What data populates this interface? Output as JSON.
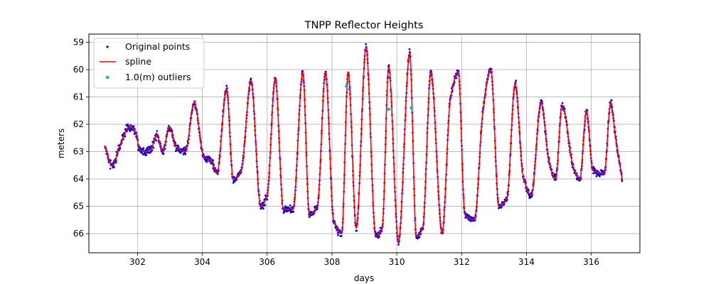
{
  "chart_data": {
    "type": "scatter",
    "title": "TNPP Reflector Heights",
    "xlabel": "days",
    "ylabel": "meters",
    "xlim": [
      300.5,
      317.5
    ],
    "ylim": [
      66.7,
      58.7
    ],
    "y_inverted": true,
    "xticks": [
      302,
      304,
      306,
      308,
      310,
      312,
      314,
      316
    ],
    "yticks": [
      59,
      60,
      61,
      62,
      63,
      64,
      65,
      66
    ],
    "grid": true,
    "legend_position": "top-left",
    "colors": {
      "original_points": "#0000ff",
      "spline": "#ff0000",
      "outliers": "#00bfbf"
    },
    "series": [
      {
        "name": "Original points",
        "kind": "scatter",
        "color": "#0000ff",
        "note": "dense sampling following the spline (~1900 points)"
      },
      {
        "name": "spline",
        "kind": "line",
        "color": "#ff0000",
        "x": [
          301.0,
          301.2,
          301.28,
          301.45,
          301.75,
          301.95,
          302.05,
          302.25,
          302.42,
          302.6,
          302.78,
          302.98,
          303.22,
          303.48,
          303.75,
          304.05,
          304.25,
          304.45,
          304.75,
          304.95,
          305.2,
          305.5,
          305.8,
          306.0,
          306.25,
          306.5,
          306.8,
          307.1,
          307.3,
          307.55,
          307.8,
          308.05,
          308.3,
          308.5,
          308.75,
          309.05,
          309.35,
          309.55,
          309.75,
          310.05,
          310.4,
          310.6,
          310.8,
          311.05,
          311.4,
          311.65,
          311.9,
          312.1,
          312.4,
          312.65,
          312.9,
          313.15,
          313.4,
          313.65,
          313.9,
          314.15,
          314.45,
          314.7,
          314.9,
          315.1,
          315.45,
          315.65,
          315.85,
          316.05,
          316.4,
          316.6,
          316.75,
          316.95
        ],
        "y": [
          62.8,
          63.5,
          63.4,
          62.8,
          62.1,
          62.3,
          62.9,
          63.0,
          62.9,
          62.4,
          63.0,
          62.1,
          62.9,
          63.0,
          61.2,
          63.2,
          63.3,
          63.8,
          60.7,
          64.0,
          63.7,
          60.4,
          65.0,
          64.6,
          60.3,
          65.1,
          65.1,
          60.1,
          65.3,
          65.0,
          60.1,
          65.5,
          66.0,
          60.1,
          65.8,
          59.2,
          66.1,
          65.8,
          59.9,
          66.3,
          59.4,
          66.1,
          65.8,
          60.1,
          66.0,
          61.1,
          60.1,
          65.3,
          65.5,
          61.6,
          60.0,
          65.0,
          64.7,
          60.5,
          63.9,
          64.6,
          61.2,
          63.4,
          64.0,
          61.3,
          63.6,
          64.0,
          61.5,
          63.7,
          63.8,
          61.2,
          62.5,
          64.0
        ]
      },
      {
        "name": "1.0(m) outliers",
        "kind": "scatter",
        "color": "#00bfbf",
        "x": [
          308.45,
          309.75,
          310.45
        ],
        "y": [
          60.6,
          61.45,
          61.4
        ]
      }
    ]
  }
}
